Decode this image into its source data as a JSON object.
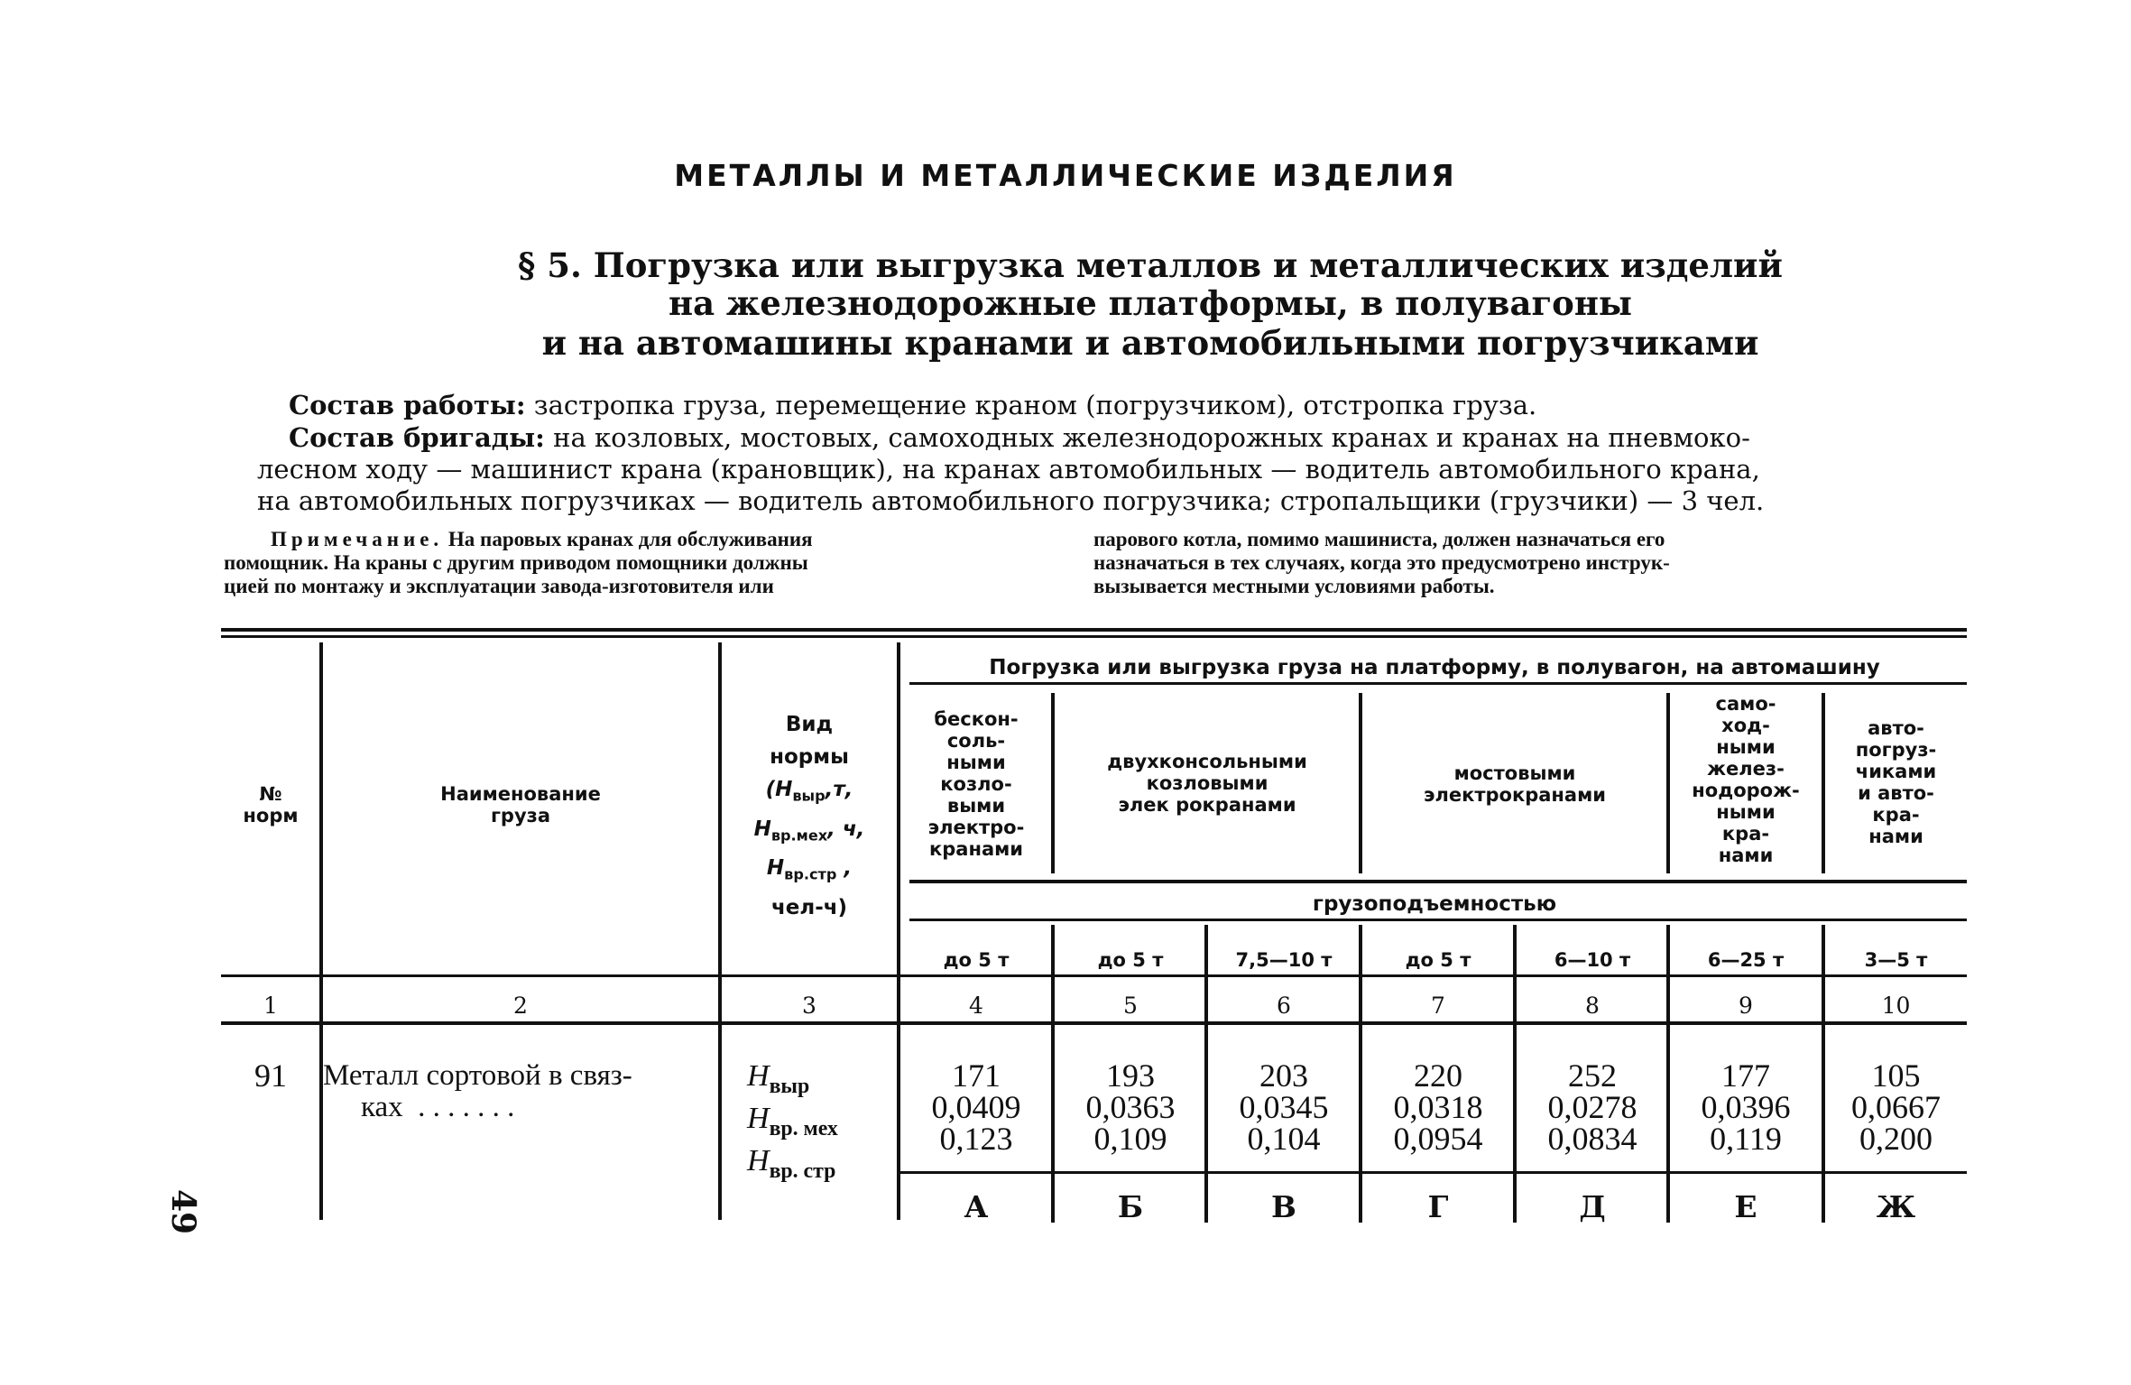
{
  "section_heading": "МЕТАЛЛЫ И МЕТАЛЛИЧЕСКИЕ ИЗДЕЛИЯ",
  "title_lines": [
    "§ 5. Погрузка или выгрузка металлов  и металлических изделий",
    "на железнодорожные платформы, в полувагоны",
    "и на автомашины кранами и автомобильными  погрузчиками"
  ],
  "work": {
    "label": "Состав работы:",
    "text": " застропка груза, перемещение краном  (погрузчиком), отстропка груза."
  },
  "crew": {
    "label": "Состав бригады:",
    "lines": [
      " на козловых, мостовых, самоходных  железнодорожных кранах и кранах на пневмоко-",
      "лесном ходу — машинист крана (крановщик), на кранах автомобильных — водитель  автомобильного крана,",
      "на автомобильных погрузчиках — водитель  автомобильного погрузчика; стропальщики (грузчики) — 3 чел."
    ]
  },
  "note": {
    "label": "Примечание.",
    "left_lines": [
      " На паровых кранах для обслуживания",
      "помощник. На краны с другим приводом помощники должны",
      "цией по монтажу и эксплуатации завода-изготовителя или"
    ],
    "right_lines": [
      "парового котла, помимо машиниста, должен назначаться его",
      "назначаться в тех случаях, когда это предусмотрено инструк-",
      "вызывается местными условиями работы."
    ]
  },
  "table": {
    "col1_header": [
      "№",
      "норм"
    ],
    "col2_header": [
      "Наименование",
      "груза"
    ],
    "col3_header": {
      "l1": "Вид",
      "l2": "нормы",
      "l3_pre": "(Н",
      "l3_sub": "выр",
      "l3_post": ",т,",
      "l4_pre": "Н",
      "l4_sub": "вр.мех",
      "l4_post": ", ч,",
      "l5_pre": "Н",
      "l5_sub": "вр.стр",
      "l5_post": " ,",
      "l6": "чел-ч)"
    },
    "group_header": "Погрузка или выгрузка груза на платформу, в полувагон, на автомашину",
    "crane_types": [
      [
        "бескон-",
        "соль-",
        "ными",
        "козло-",
        "выми",
        "электро-",
        "кранами"
      ],
      [
        "двухконсольными",
        "козловыми",
        "элек рокранами"
      ],
      [
        "мостовыми",
        "электрокранами"
      ],
      [
        "само-",
        "ход-",
        "ными",
        "желез-",
        "нодорож-",
        "ными",
        "кра-",
        "нами"
      ],
      [
        "авто-",
        "погруз-",
        "чиками",
        "и авто-",
        "кра-",
        "нами"
      ]
    ],
    "capacity_label": "грузоподъемностью",
    "capacities": [
      "до 5 т",
      "до 5 т",
      "7,5—10 т",
      "до 5 т",
      "6—10 т",
      "6—25 т",
      "3—5 т"
    ],
    "column_numbers": [
      "1",
      "2",
      "3",
      "4",
      "5",
      "6",
      "7",
      "8",
      "9",
      "10"
    ],
    "rows": [
      {
        "norm_no": "91",
        "name_line1": "Металл сортовой в связ-",
        "name_line2": "ках  . . . . . . .",
        "norm_types": [
          {
            "pre": "Н",
            "sub": "выр"
          },
          {
            "pre": "Н",
            "sub": "вр. мех"
          },
          {
            "pre": "Н",
            "sub": "вр. стр"
          }
        ],
        "values": [
          [
            "171",
            "0,0409",
            "0,123"
          ],
          [
            "193",
            "0,0363",
            "0,109"
          ],
          [
            "203",
            "0,0345",
            "0,104"
          ],
          [
            "220",
            "0,0318",
            "0,0954"
          ],
          [
            "252",
            "0,0278",
            "0,0834"
          ],
          [
            "177",
            "0,0396",
            "0,119"
          ],
          [
            "105",
            "0,0667",
            "0,200"
          ]
        ],
        "letters": [
          "А",
          "Б",
          "В",
          "Г",
          "Д",
          "Е",
          "Ж"
        ]
      }
    ]
  },
  "page_number": "49"
}
